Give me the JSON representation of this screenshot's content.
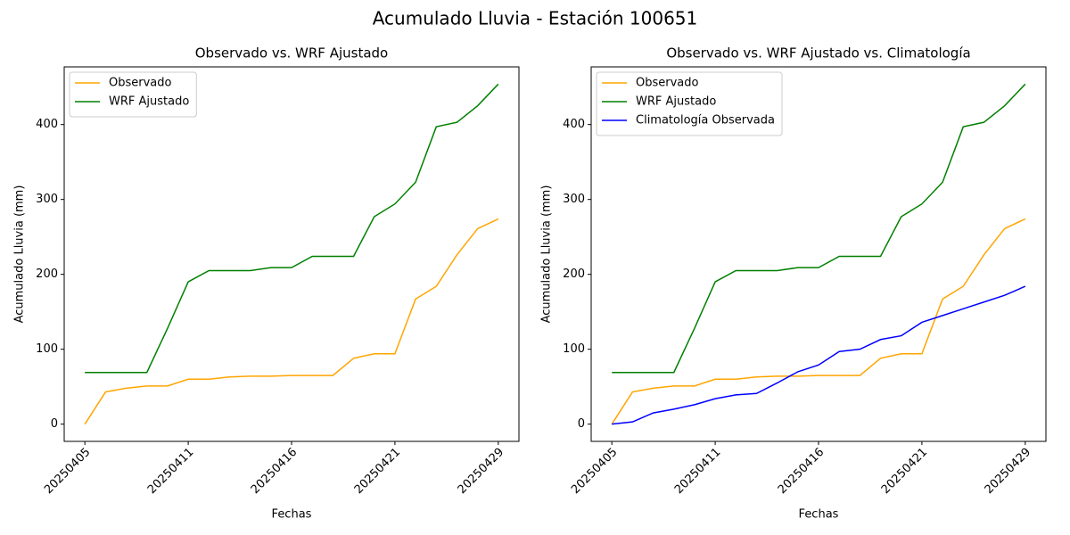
{
  "title": "Acumulado Lluvia - Estación 100651",
  "chart_data": [
    {
      "type": "line",
      "title": "Observado vs. WRF Ajustado",
      "x_label": "Fechas",
      "y_label": "Acumulado Lluvia (mm)",
      "categories": [
        "20250405",
        null,
        null,
        null,
        null,
        "20250411",
        null,
        null,
        null,
        null,
        "20250416",
        null,
        null,
        null,
        null,
        "20250421",
        null,
        null,
        null,
        null,
        "20250429"
      ],
      "series": [
        {
          "name": "Observado",
          "color": "#ffa500",
          "values": [
            0,
            43,
            48,
            51,
            51,
            60,
            60,
            63,
            64,
            64,
            65,
            65,
            65,
            88,
            94,
            94,
            167,
            184,
            226,
            261,
            274
          ]
        },
        {
          "name": "WRF Ajustado",
          "color": "#008000",
          "values": [
            69,
            69,
            69,
            69,
            128,
            190,
            205,
            205,
            205,
            209,
            209,
            224,
            224,
            224,
            277,
            294,
            323,
            397,
            403,
            425,
            454
          ]
        }
      ],
      "xlim": [
        -1,
        21
      ],
      "ylim": [
        -23,
        477
      ],
      "yticks": [
        0,
        100,
        200,
        300,
        400
      ],
      "legend": "upper left"
    },
    {
      "type": "line",
      "title": "Observado vs. WRF Ajustado vs. Climatología",
      "x_label": "Fechas",
      "y_label": "Acumulado Lluvia (mm)",
      "categories": [
        "20250405",
        null,
        null,
        null,
        null,
        "20250411",
        null,
        null,
        null,
        null,
        "20250416",
        null,
        null,
        null,
        null,
        "20250421",
        null,
        null,
        null,
        null,
        "20250429"
      ],
      "series": [
        {
          "name": "Observado",
          "color": "#ffa500",
          "values": [
            0,
            43,
            48,
            51,
            51,
            60,
            60,
            63,
            64,
            64,
            65,
            65,
            65,
            88,
            94,
            94,
            167,
            184,
            226,
            261,
            274
          ]
        },
        {
          "name": "WRF Ajustado",
          "color": "#008000",
          "values": [
            69,
            69,
            69,
            69,
            128,
            190,
            205,
            205,
            205,
            209,
            209,
            224,
            224,
            224,
            277,
            294,
            323,
            397,
            403,
            425,
            454
          ]
        },
        {
          "name": "Climatología Observada",
          "color": "#0000ff",
          "values": [
            0,
            3,
            15,
            20,
            26,
            34,
            39,
            41,
            55,
            70,
            79,
            97,
            100,
            113,
            118,
            136,
            145,
            154,
            163,
            172,
            184
          ]
        }
      ],
      "xlim": [
        -1,
        21
      ],
      "ylim": [
        -23,
        477
      ],
      "yticks": [
        0,
        100,
        200,
        300,
        400
      ],
      "legend": "upper left"
    }
  ]
}
